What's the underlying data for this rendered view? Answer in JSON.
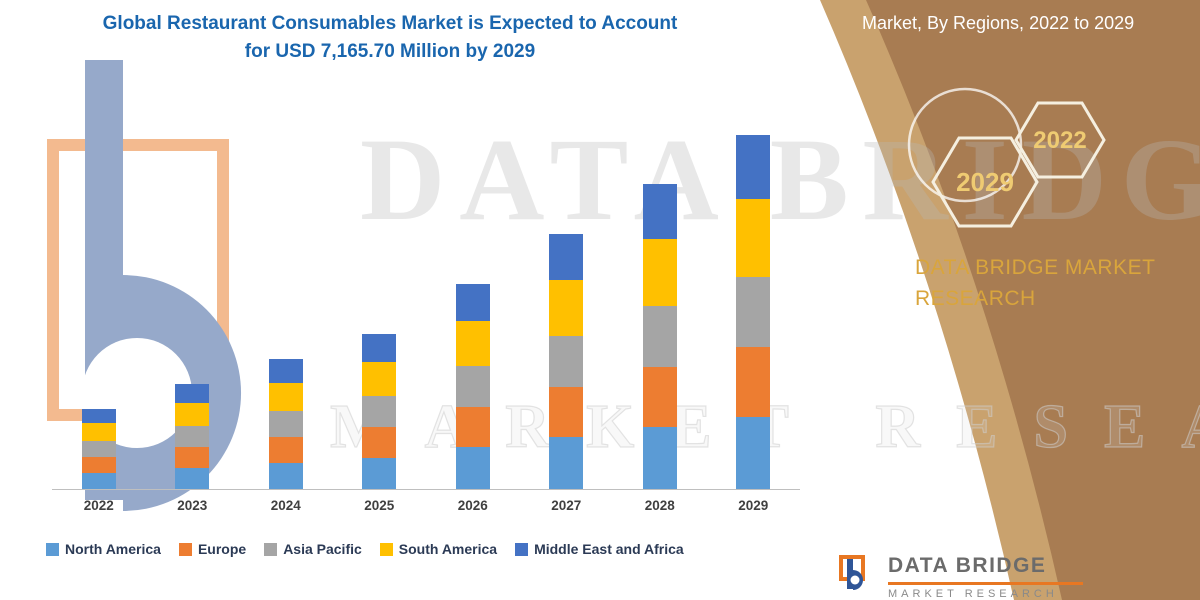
{
  "title": {
    "line1": "Global Restaurant Consumables Market is Expected to Account",
    "line2": "for USD 7,165.70 Million by 2029"
  },
  "header_right": {
    "text": "Market, By Regions, 2022 to 2029"
  },
  "badges": {
    "hex_left": "2029",
    "hex_right": "2022"
  },
  "brand_panel": {
    "line1": "DATA BRIDGE MARKET",
    "line2": "RESEARCH"
  },
  "watermarks": {
    "big": "DATA BRIDGE",
    "outline": "MARKET RESEARCH"
  },
  "footer_logo": {
    "name": "DATA BRIDGE",
    "subtext": "MARKET RESEARCH"
  },
  "colors": {
    "title_blue": "#1A66AE",
    "panel_brown": "#A87C52",
    "panel_brown_light": "#C9A26E",
    "gold": "#D9A53C",
    "accent_orange": "#E87722",
    "axis_gray": "#BFBFBF"
  },
  "chart_data": {
    "type": "bar",
    "stacked": true,
    "title": "Global Restaurant Consumables Market is Expected to Account for USD 7,165.70 Million by 2029",
    "unit": "USD Million",
    "categories": [
      "2022",
      "2023",
      "2024",
      "2025",
      "2026",
      "2027",
      "2028",
      "2029"
    ],
    "series": [
      {
        "name": "North America",
        "color": "#5B9BD5",
        "values": [
          329,
          430,
          534,
          637,
          842,
          1047,
          1253,
          1455
        ]
      },
      {
        "name": "Europe",
        "color": "#ED7D31",
        "values": [
          321,
          420,
          521,
          622,
          822,
          1022,
          1222,
          1419
        ]
      },
      {
        "name": "Asia Pacific",
        "color": "#A5A5A5",
        "values": [
          321,
          420,
          521,
          622,
          822,
          1022,
          1222,
          1419
        ]
      },
      {
        "name": "South America",
        "color": "#FFC000",
        "values": [
          356,
          466,
          579,
          691,
          913,
          1135,
          1357,
          1576
        ]
      },
      {
        "name": "Middle East and Africa",
        "color": "#4472C4",
        "values": [
          293,
          384,
          476,
          568,
          751,
          934,
          1117,
          1297
        ]
      }
    ],
    "totals": [
      1620,
      2120,
      2631,
      3140,
      4150,
      5160,
      6171,
      7166
    ],
    "ylim": [
      0,
      7165.7
    ],
    "grid": false,
    "legend_position": "bottom"
  }
}
